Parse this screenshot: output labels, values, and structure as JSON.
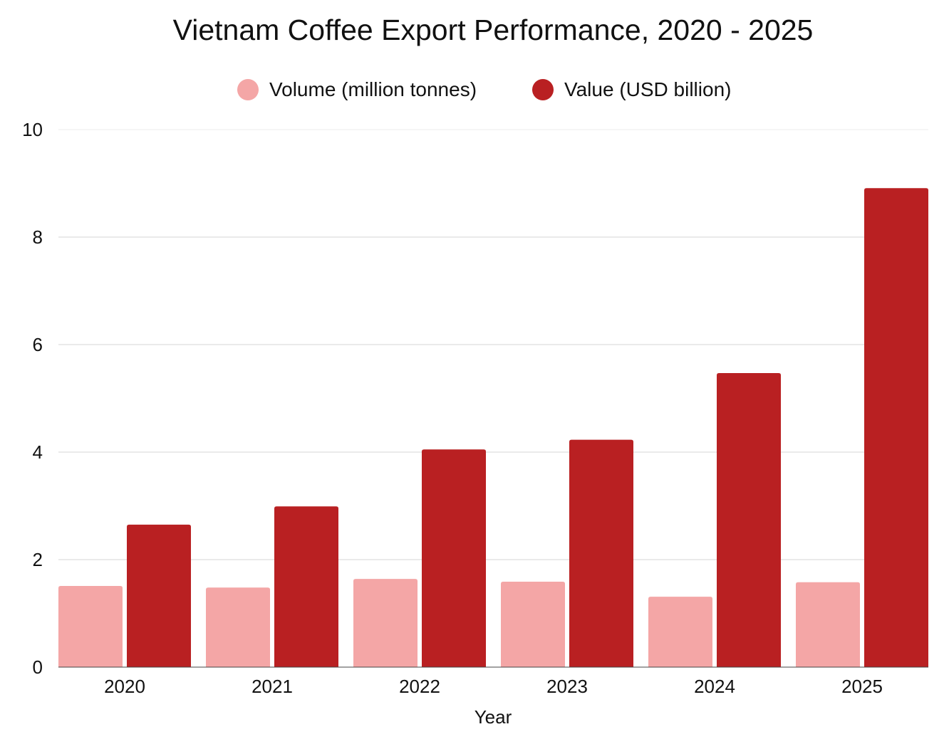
{
  "chart_data": {
    "type": "bar",
    "title": "Vietnam Coffee Export Performance, 2020 - 2025",
    "xlabel": "Year",
    "ylabel": "",
    "categories": [
      "2020",
      "2021",
      "2022",
      "2023",
      "2024",
      "2025"
    ],
    "ylim": [
      0,
      10
    ],
    "yticks": [
      "0",
      "2",
      "4",
      "6",
      "8",
      "10"
    ],
    "grid": true,
    "legend_position": "top",
    "series": [
      {
        "name": "Volume (million tonnes)",
        "color": "#f4a6a6",
        "values": [
          1.51,
          1.48,
          1.64,
          1.59,
          1.31,
          1.58
        ]
      },
      {
        "name": "Value (USD billion)",
        "color": "#b92022",
        "values": [
          2.65,
          2.99,
          4.05,
          4.23,
          5.47,
          8.91
        ]
      }
    ]
  }
}
